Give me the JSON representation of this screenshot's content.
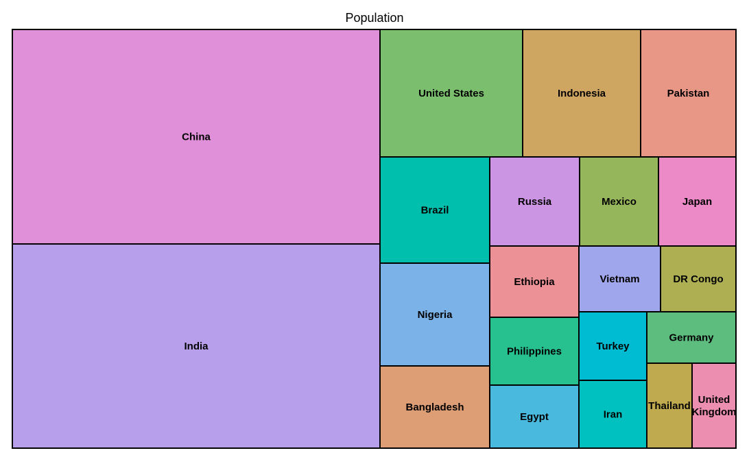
{
  "chart_data": {
    "type": "treemap",
    "title": "Population",
    "cells": [
      {
        "name": "China",
        "label": [
          "China"
        ],
        "color": "#e08fd9"
      },
      {
        "name": "India",
        "label": [
          "India"
        ],
        "color": "#b79feb"
      },
      {
        "name": "United States",
        "label": [
          "United States"
        ],
        "color": "#7bbf6e"
      },
      {
        "name": "Indonesia",
        "label": [
          "Indonesia"
        ],
        "color": "#cfa562"
      },
      {
        "name": "Pakistan",
        "label": [
          "Pakistan"
        ],
        "color": "#e89787"
      },
      {
        "name": "Brazil",
        "label": [
          "Brazil"
        ],
        "color": "#00c0ad"
      },
      {
        "name": "Russia",
        "label": [
          "Russia"
        ],
        "color": "#cc95e3"
      },
      {
        "name": "Mexico",
        "label": [
          "Mexico"
        ],
        "color": "#96b65b"
      },
      {
        "name": "Japan",
        "label": [
          "Japan"
        ],
        "color": "#ec8ac8"
      },
      {
        "name": "Nigeria",
        "label": [
          "Nigeria"
        ],
        "color": "#7bb2e8"
      },
      {
        "name": "Ethiopia",
        "label": [
          "Ethiopia"
        ],
        "color": "#ec9297"
      },
      {
        "name": "Vietnam",
        "label": [
          "Vietnam"
        ],
        "color": "#9fa6eb"
      },
      {
        "name": "DR Congo",
        "label": [
          "DR Congo"
        ],
        "color": "#aeae53"
      },
      {
        "name": "Philippines",
        "label": [
          "Philippines"
        ],
        "color": "#27c18f"
      },
      {
        "name": "Turkey",
        "label": [
          "Turkey"
        ],
        "color": "#00bcd3"
      },
      {
        "name": "Germany",
        "label": [
          "Germany"
        ],
        "color": "#5cbd7e"
      },
      {
        "name": "Bangladesh",
        "label": [
          "Bangladesh"
        ],
        "color": "#dd9d75"
      },
      {
        "name": "Egypt",
        "label": [
          "Egypt"
        ],
        "color": "#4ab9de"
      },
      {
        "name": "Iran",
        "label": [
          "Iran"
        ],
        "color": "#00c1bf"
      },
      {
        "name": "Thailand",
        "label": [
          "Thailand"
        ],
        "color": "#c0aa50"
      },
      {
        "name": "United Kingdom",
        "label": [
          "United",
          "Kingdom"
        ],
        "color": "#ec8eb0"
      }
    ]
  }
}
